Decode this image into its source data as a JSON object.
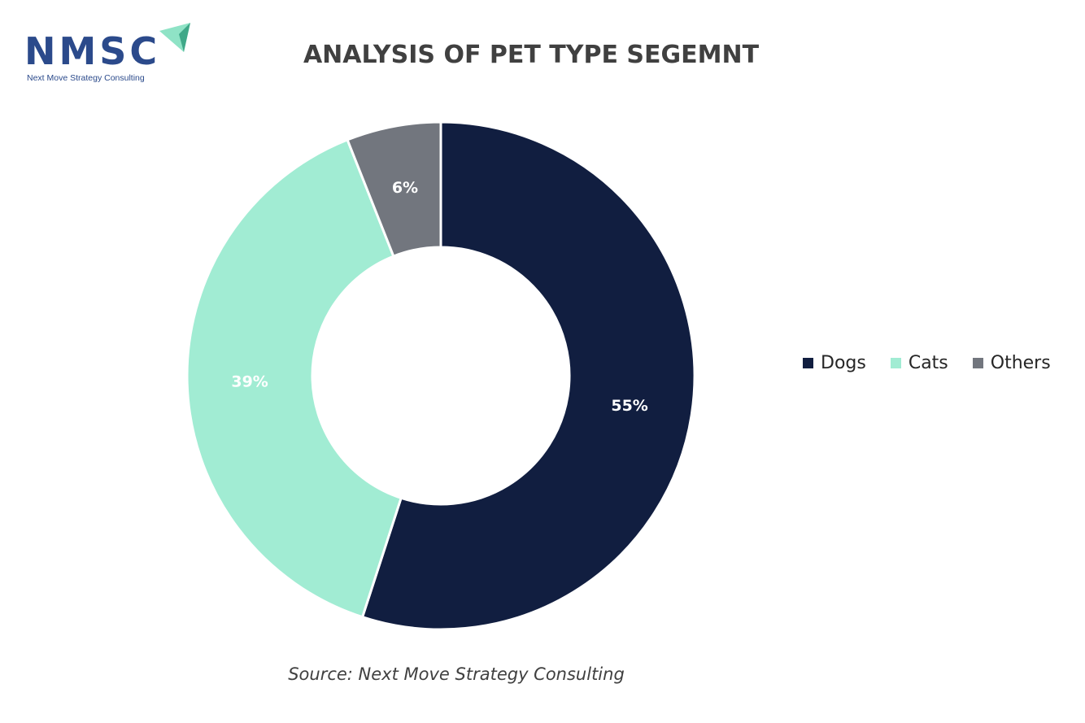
{
  "logo": {
    "text": "NMSC",
    "subtitle": "Next Move Strategy Consulting"
  },
  "chart_data": {
    "type": "pie",
    "subtype": "donut",
    "title": "ANALYSIS OF PET TYPE SEGEMNT",
    "categories": [
      "Dogs",
      "Cats",
      "Others"
    ],
    "values": [
      55,
      39,
      6
    ],
    "labels": [
      "55%",
      "39%",
      "6%"
    ],
    "colors": [
      "#111e40",
      "#a1ecd3",
      "#72767e"
    ],
    "legend_position": "right",
    "start_angle": "top, clockwise",
    "source": "Source: Next Move Strategy Consulting"
  }
}
